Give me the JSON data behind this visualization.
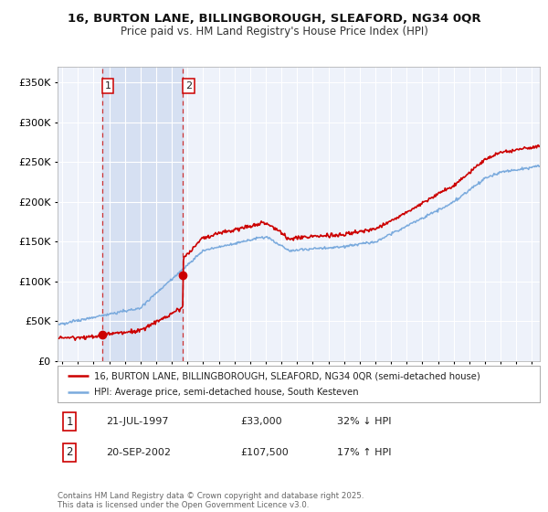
{
  "title_line1": "16, BURTON LANE, BILLINGBOROUGH, SLEAFORD, NG34 0QR",
  "title_line2": "Price paid vs. HM Land Registry's House Price Index (HPI)",
  "background_color": "#ffffff",
  "plot_bg_color": "#eef2fa",
  "shade_color": "#ccd9f0",
  "ylim": [
    0,
    370000
  ],
  "yticks": [
    0,
    50000,
    100000,
    150000,
    200000,
    250000,
    300000,
    350000
  ],
  "xlim_start": 1994.7,
  "xlim_end": 2025.5,
  "xticks": [
    1995,
    1996,
    1997,
    1998,
    1999,
    2000,
    2001,
    2002,
    2003,
    2004,
    2005,
    2006,
    2007,
    2008,
    2009,
    2010,
    2011,
    2012,
    2013,
    2014,
    2015,
    2016,
    2017,
    2018,
    2019,
    2020,
    2021,
    2022,
    2023,
    2024,
    2025
  ],
  "sale1_date": 1997.55,
  "sale1_price": 33000,
  "sale1_label": "1",
  "sale2_date": 2002.72,
  "sale2_price": 107500,
  "sale2_label": "2",
  "line_color_red": "#cc0000",
  "line_color_blue": "#7aaadd",
  "marker_color": "#cc0000",
  "dashed_color": "#cc3333",
  "legend_label_red": "16, BURTON LANE, BILLINGBOROUGH, SLEAFORD, NG34 0QR (semi-detached house)",
  "legend_label_blue": "HPI: Average price, semi-detached house, South Kesteven",
  "footer": "Contains HM Land Registry data © Crown copyright and database right 2025.\nThis data is licensed under the Open Government Licence v3.0.",
  "sale_table": [
    {
      "num": "1",
      "date": "21-JUL-1997",
      "price": "£33,000",
      "hpi": "32% ↓ HPI"
    },
    {
      "num": "2",
      "date": "20-SEP-2002",
      "price": "£107,500",
      "hpi": "17% ↑ HPI"
    }
  ]
}
